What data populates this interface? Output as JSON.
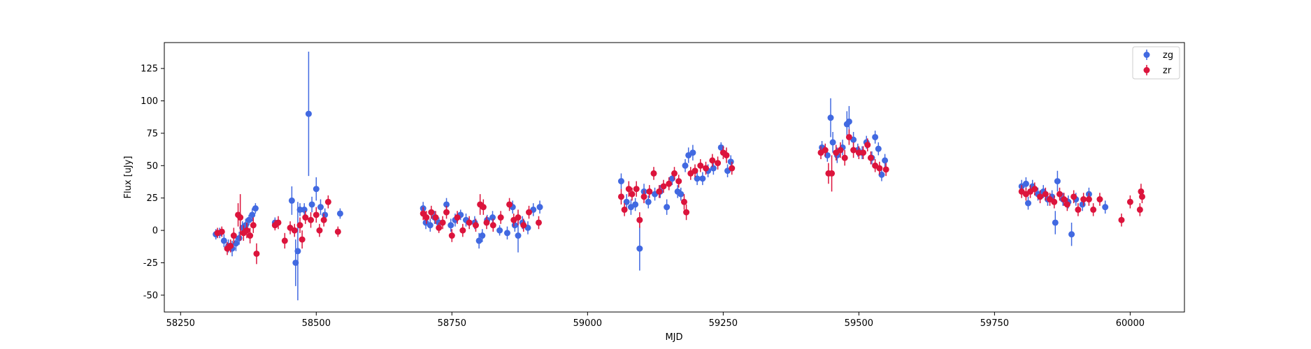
{
  "chart_data": {
    "type": "scatter",
    "title": "",
    "xlabel": "MJD",
    "ylabel": "Flux [uJy]",
    "xlim": [
      58220,
      60100
    ],
    "ylim": [
      -63,
      145
    ],
    "xticks": [
      58250,
      58500,
      58750,
      59000,
      59250,
      59500,
      59750,
      60000
    ],
    "yticks": [
      -50,
      -25,
      0,
      25,
      50,
      75,
      100,
      125
    ],
    "grid": false,
    "legend_position": "top-right",
    "series": [
      {
        "name": "zg",
        "color": "#4169E1",
        "points": [
          [
            58315,
            -3,
            4
          ],
          [
            58322,
            -2,
            4
          ],
          [
            58330,
            -8,
            5
          ],
          [
            58338,
            -12,
            5
          ],
          [
            58345,
            -14,
            6
          ],
          [
            58352,
            -10,
            6
          ],
          [
            58358,
            -6,
            5
          ],
          [
            58364,
            2,
            5
          ],
          [
            58370,
            4,
            5
          ],
          [
            58376,
            8,
            4
          ],
          [
            58382,
            12,
            5
          ],
          [
            58388,
            17,
            4
          ],
          [
            58424,
            6,
            4
          ],
          [
            58455,
            23,
            11
          ],
          [
            58462,
            -25,
            18
          ],
          [
            58466,
            -16,
            38
          ],
          [
            58470,
            16,
            5
          ],
          [
            58478,
            16,
            5
          ],
          [
            58486,
            90,
            48
          ],
          [
            58492,
            20,
            6
          ],
          [
            58500,
            32,
            9
          ],
          [
            58508,
            18,
            6
          ],
          [
            58516,
            12,
            5
          ],
          [
            58544,
            13,
            4
          ],
          [
            58697,
            17,
            5
          ],
          [
            58702,
            6,
            5
          ],
          [
            58710,
            4,
            5
          ],
          [
            58718,
            10,
            5
          ],
          [
            58726,
            6,
            4
          ],
          [
            58740,
            20,
            5
          ],
          [
            58748,
            4,
            5
          ],
          [
            58756,
            8,
            5
          ],
          [
            58766,
            12,
            4
          ],
          [
            58776,
            8,
            5
          ],
          [
            58792,
            6,
            5
          ],
          [
            58800,
            -8,
            6
          ],
          [
            58806,
            -4,
            5
          ],
          [
            58815,
            8,
            4
          ],
          [
            58825,
            10,
            5
          ],
          [
            58838,
            0,
            4
          ],
          [
            58852,
            -2,
            5
          ],
          [
            58862,
            18,
            5
          ],
          [
            58866,
            4,
            5
          ],
          [
            58872,
            -4,
            13
          ],
          [
            58880,
            6,
            5
          ],
          [
            58890,
            2,
            5
          ],
          [
            58900,
            16,
            5
          ],
          [
            58912,
            18,
            5
          ],
          [
            59062,
            38,
            6
          ],
          [
            59072,
            22,
            6
          ],
          [
            59080,
            18,
            6
          ],
          [
            59088,
            20,
            5
          ],
          [
            59096,
            -14,
            17
          ],
          [
            59104,
            30,
            6
          ],
          [
            59112,
            22,
            5
          ],
          [
            59124,
            28,
            5
          ],
          [
            59134,
            30,
            5
          ],
          [
            59146,
            18,
            6
          ],
          [
            59156,
            40,
            5
          ],
          [
            59166,
            30,
            5
          ],
          [
            59172,
            28,
            5
          ],
          [
            59180,
            50,
            5
          ],
          [
            59186,
            58,
            6
          ],
          [
            59194,
            60,
            6
          ],
          [
            59202,
            40,
            5
          ],
          [
            59212,
            40,
            5
          ],
          [
            59222,
            46,
            5
          ],
          [
            59232,
            48,
            5
          ],
          [
            59246,
            64,
            4
          ],
          [
            59258,
            46,
            5
          ],
          [
            59264,
            53,
            5
          ],
          [
            59432,
            64,
            5
          ],
          [
            59442,
            58,
            5
          ],
          [
            59448,
            87,
            15
          ],
          [
            59452,
            68,
            8
          ],
          [
            59460,
            58,
            6
          ],
          [
            59470,
            64,
            6
          ],
          [
            59478,
            82,
            10
          ],
          [
            59482,
            84,
            12
          ],
          [
            59490,
            70,
            6
          ],
          [
            59498,
            62,
            5
          ],
          [
            59506,
            60,
            5
          ],
          [
            59514,
            68,
            5
          ],
          [
            59524,
            56,
            5
          ],
          [
            59530,
            72,
            5
          ],
          [
            59536,
            63,
            5
          ],
          [
            59542,
            43,
            5
          ],
          [
            59548,
            54,
            5
          ],
          [
            59800,
            34,
            5
          ],
          [
            59808,
            36,
            5
          ],
          [
            59812,
            21,
            5
          ],
          [
            59820,
            34,
            5
          ],
          [
            59830,
            28,
            5
          ],
          [
            59840,
            30,
            5
          ],
          [
            59848,
            24,
            5
          ],
          [
            59856,
            26,
            5
          ],
          [
            59862,
            6,
            9
          ],
          [
            59866,
            38,
            8
          ],
          [
            59876,
            24,
            5
          ],
          [
            59886,
            22,
            5
          ],
          [
            59892,
            -3,
            9
          ],
          [
            59900,
            24,
            5
          ],
          [
            59912,
            20,
            5
          ],
          [
            59924,
            28,
            5
          ],
          [
            59954,
            18,
            5
          ]
        ]
      },
      {
        "name": "zr",
        "color": "#DC143C",
        "points": [
          [
            58318,
            -2,
            4
          ],
          [
            58326,
            -1,
            4
          ],
          [
            58336,
            -14,
            5
          ],
          [
            58342,
            -12,
            5
          ],
          [
            58348,
            -4,
            6
          ],
          [
            58356,
            12,
            9
          ],
          [
            58360,
            10,
            18
          ],
          [
            58366,
            -2,
            6
          ],
          [
            58372,
            0,
            6
          ],
          [
            58378,
            -4,
            6
          ],
          [
            58384,
            4,
            6
          ],
          [
            58390,
            -18,
            8
          ],
          [
            58424,
            4,
            4
          ],
          [
            58430,
            6,
            5
          ],
          [
            58442,
            -8,
            6
          ],
          [
            58452,
            2,
            5
          ],
          [
            58460,
            0,
            5
          ],
          [
            58470,
            4,
            6
          ],
          [
            58474,
            -7,
            7
          ],
          [
            58480,
            10,
            5
          ],
          [
            58490,
            8,
            6
          ],
          [
            58500,
            12,
            6
          ],
          [
            58506,
            0,
            5
          ],
          [
            58514,
            8,
            5
          ],
          [
            58522,
            22,
            5
          ],
          [
            58540,
            -1,
            4
          ],
          [
            58697,
            13,
            5
          ],
          [
            58703,
            10,
            5
          ],
          [
            58712,
            14,
            5
          ],
          [
            58720,
            10,
            5
          ],
          [
            58726,
            2,
            4
          ],
          [
            58733,
            6,
            5
          ],
          [
            58740,
            14,
            5
          ],
          [
            58750,
            -4,
            5
          ],
          [
            58760,
            10,
            5
          ],
          [
            58770,
            0,
            5
          ],
          [
            58782,
            6,
            5
          ],
          [
            58794,
            4,
            5
          ],
          [
            58802,
            20,
            8
          ],
          [
            58808,
            18,
            6
          ],
          [
            58814,
            6,
            5
          ],
          [
            58826,
            4,
            5
          ],
          [
            58840,
            10,
            5
          ],
          [
            58856,
            20,
            5
          ],
          [
            58864,
            8,
            5
          ],
          [
            58872,
            10,
            6
          ],
          [
            58882,
            4,
            5
          ],
          [
            58892,
            14,
            5
          ],
          [
            58910,
            6,
            5
          ],
          [
            59062,
            26,
            6
          ],
          [
            59068,
            16,
            5
          ],
          [
            59076,
            32,
            6
          ],
          [
            59082,
            28,
            5
          ],
          [
            59090,
            32,
            6
          ],
          [
            59096,
            8,
            6
          ],
          [
            59104,
            26,
            5
          ],
          [
            59114,
            30,
            5
          ],
          [
            59122,
            44,
            5
          ],
          [
            59132,
            30,
            5
          ],
          [
            59140,
            34,
            5
          ],
          [
            59150,
            36,
            5
          ],
          [
            59160,
            44,
            5
          ],
          [
            59168,
            38,
            5
          ],
          [
            59178,
            22,
            6
          ],
          [
            59182,
            14,
            6
          ],
          [
            59190,
            44,
            5
          ],
          [
            59198,
            46,
            5
          ],
          [
            59208,
            50,
            5
          ],
          [
            59218,
            48,
            5
          ],
          [
            59230,
            54,
            5
          ],
          [
            59240,
            52,
            5
          ],
          [
            59250,
            60,
            5
          ],
          [
            59256,
            58,
            6
          ],
          [
            59266,
            48,
            5
          ],
          [
            59430,
            60,
            5
          ],
          [
            59438,
            62,
            5
          ],
          [
            59444,
            44,
            8
          ],
          [
            59450,
            44,
            14
          ],
          [
            59458,
            60,
            6
          ],
          [
            59466,
            62,
            6
          ],
          [
            59474,
            56,
            6
          ],
          [
            59482,
            72,
            6
          ],
          [
            59490,
            62,
            6
          ],
          [
            59500,
            60,
            5
          ],
          [
            59508,
            60,
            5
          ],
          [
            59516,
            66,
            5
          ],
          [
            59522,
            56,
            5
          ],
          [
            59530,
            50,
            5
          ],
          [
            59538,
            48,
            5
          ],
          [
            59550,
            47,
            5
          ],
          [
            59800,
            30,
            5
          ],
          [
            59808,
            28,
            5
          ],
          [
            59816,
            30,
            5
          ],
          [
            59824,
            32,
            5
          ],
          [
            59834,
            26,
            5
          ],
          [
            59844,
            28,
            5
          ],
          [
            59852,
            24,
            5
          ],
          [
            59860,
            22,
            5
          ],
          [
            59870,
            28,
            5
          ],
          [
            59878,
            24,
            5
          ],
          [
            59884,
            20,
            5
          ],
          [
            59896,
            26,
            5
          ],
          [
            59904,
            16,
            5
          ],
          [
            59914,
            24,
            5
          ],
          [
            59924,
            24,
            5
          ],
          [
            59932,
            16,
            5
          ],
          [
            59944,
            24,
            5
          ],
          [
            59984,
            8,
            5
          ],
          [
            60000,
            22,
            5
          ],
          [
            60018,
            16,
            5
          ],
          [
            60020,
            30,
            6
          ],
          [
            60022,
            26,
            5
          ]
        ]
      }
    ]
  }
}
